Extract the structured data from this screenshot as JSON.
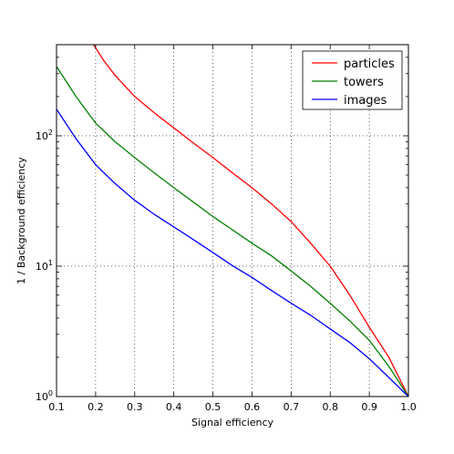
{
  "chart_data": {
    "type": "line",
    "xlabel": "Signal efficiency",
    "ylabel": "1 / Background efficiency",
    "xlim": [
      0.1,
      1.0
    ],
    "ylim": [
      1,
      500
    ],
    "yscale": "log",
    "grid": true,
    "legend_position": "top-right",
    "x_ticks": [
      "0.1",
      "0.2",
      "0.3",
      "0.4",
      "0.5",
      "0.6",
      "0.7",
      "0.8",
      "0.9",
      "1.0"
    ],
    "y_ticks": [
      {
        "base": "10",
        "exp": "0",
        "value": 1
      },
      {
        "base": "10",
        "exp": "1",
        "value": 10
      },
      {
        "base": "10",
        "exp": "2",
        "value": 100
      }
    ],
    "series": [
      {
        "name": "particles",
        "color": "#ff0000",
        "x": [
          0.195,
          0.22,
          0.25,
          0.3,
          0.35,
          0.4,
          0.45,
          0.5,
          0.55,
          0.6,
          0.65,
          0.7,
          0.75,
          0.8,
          0.85,
          0.9,
          0.95,
          1.0
        ],
        "y": [
          500,
          380,
          290,
          200,
          150,
          115,
          88,
          68,
          52,
          40,
          30,
          22,
          15,
          10,
          6,
          3.4,
          2.0,
          1.0
        ]
      },
      {
        "name": "towers",
        "color": "#008000",
        "x": [
          0.1,
          0.15,
          0.2,
          0.25,
          0.3,
          0.35,
          0.4,
          0.45,
          0.5,
          0.55,
          0.6,
          0.65,
          0.7,
          0.75,
          0.8,
          0.85,
          0.9,
          0.95,
          1.0
        ],
        "y": [
          340,
          200,
          125,
          90,
          68,
          52,
          40,
          31,
          24,
          19,
          15,
          12,
          9.2,
          7.0,
          5.2,
          3.8,
          2.7,
          1.7,
          1.0
        ]
      },
      {
        "name": "images",
        "color": "#0000ff",
        "x": [
          0.1,
          0.15,
          0.2,
          0.25,
          0.3,
          0.35,
          0.4,
          0.45,
          0.5,
          0.55,
          0.6,
          0.65,
          0.7,
          0.75,
          0.8,
          0.85,
          0.9,
          0.95,
          1.0
        ],
        "y": [
          160,
          95,
          60,
          43,
          32,
          25,
          20,
          16,
          12.7,
          10.1,
          8.2,
          6.5,
          5.2,
          4.2,
          3.3,
          2.6,
          1.95,
          1.4,
          1.0
        ]
      }
    ]
  }
}
